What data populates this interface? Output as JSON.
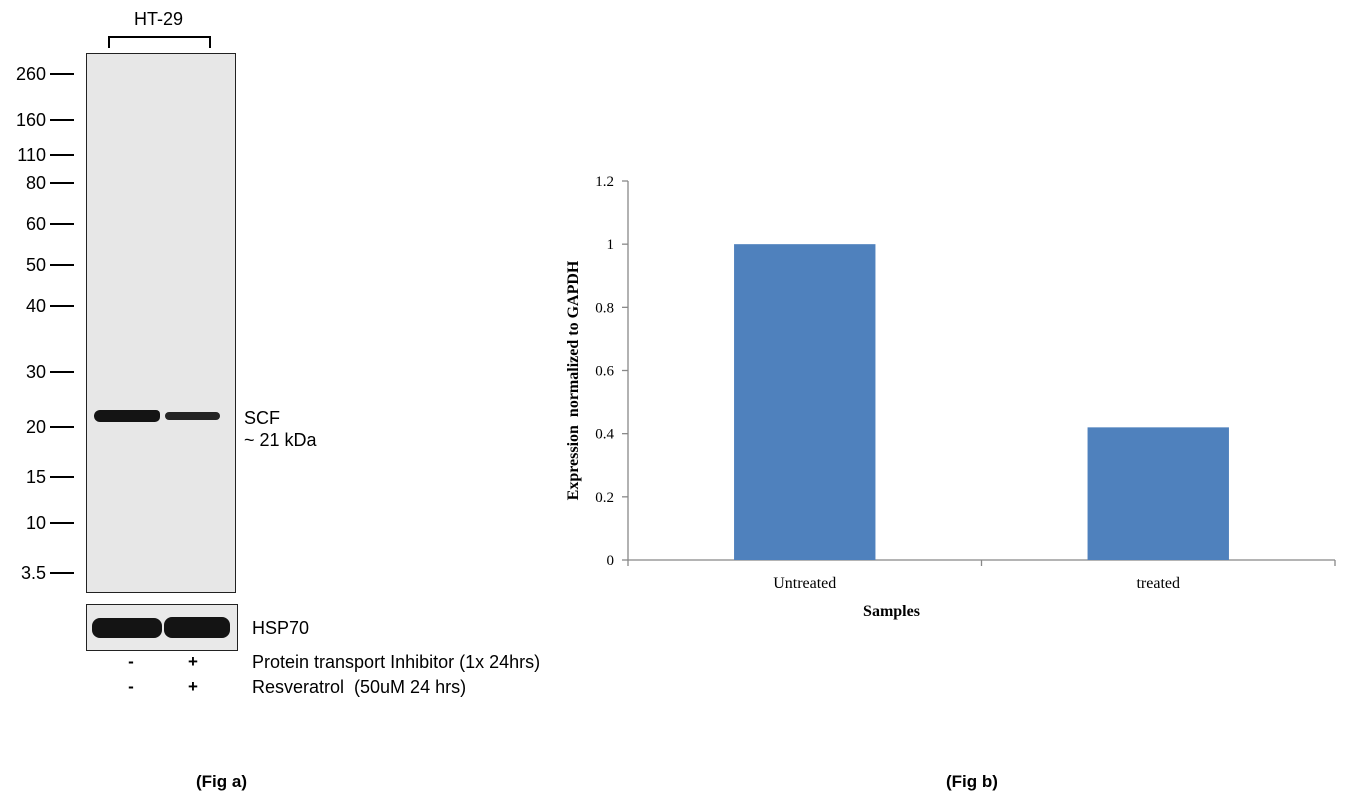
{
  "fig_a": {
    "cell_line": "HT-29",
    "mw_markers": [
      "260",
      "160",
      "110",
      "80",
      "60",
      "50",
      "40",
      "30",
      "20",
      "15",
      "10",
      "3.5"
    ],
    "band_label_1": "SCF",
    "band_label_2": "~ 21 kDa",
    "loading_control": "HSP70",
    "treatments": [
      {
        "label": "Protein transport Inhibitor (1x 24hrs)",
        "lane1": "-",
        "lane2": "+"
      },
      {
        "label": "Resveratrol  (50uM 24 hrs)",
        "lane1": "-",
        "lane2": "+"
      }
    ],
    "caption": "(Fig a)"
  },
  "fig_b": {
    "caption": "(Fig b)"
  },
  "chart_data": {
    "type": "bar",
    "categories": [
      "Untreated",
      "treated"
    ],
    "values": [
      1.0,
      0.42
    ],
    "xlabel": "Samples",
    "ylabel": "Expression  normalized to GAPDH",
    "ylim": [
      0,
      1.2
    ],
    "yticks": [
      0,
      0.2,
      0.4,
      0.6,
      0.8,
      1,
      1.2
    ],
    "ytick_labels": [
      "0",
      "0.2",
      "0.4",
      "0.6",
      "0.8",
      "1",
      "1.2"
    ],
    "bar_color": "#4f81bd",
    "grid": false
  }
}
